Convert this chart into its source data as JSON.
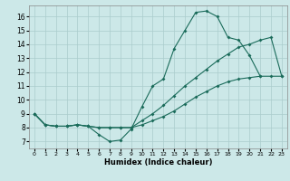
{
  "xlabel": "Humidex (Indice chaleur)",
  "background_color": "#cce8e8",
  "grid_color": "#aacccc",
  "line_color": "#1a6b5a",
  "xlim": [
    -0.5,
    23.5
  ],
  "ylim": [
    6.5,
    16.8
  ],
  "yticks": [
    7,
    8,
    9,
    10,
    11,
    12,
    13,
    14,
    15,
    16
  ],
  "xticks": [
    0,
    1,
    2,
    3,
    4,
    5,
    6,
    7,
    8,
    9,
    10,
    11,
    12,
    13,
    14,
    15,
    16,
    17,
    18,
    19,
    20,
    21,
    22,
    23
  ],
  "line1_x": [
    0,
    1,
    2,
    3,
    4,
    5,
    6,
    7,
    8,
    9,
    10,
    11,
    12,
    13,
    14,
    15,
    16,
    17,
    18,
    19,
    20,
    21
  ],
  "line1_y": [
    9.0,
    8.2,
    8.1,
    8.1,
    8.2,
    8.1,
    7.5,
    7.0,
    7.1,
    7.9,
    9.5,
    11.0,
    11.5,
    13.7,
    15.0,
    16.3,
    16.4,
    16.0,
    14.5,
    14.3,
    13.2,
    11.7
  ],
  "line2_x": [
    0,
    1,
    2,
    3,
    4,
    5,
    6,
    7,
    8,
    9,
    10,
    11,
    12,
    13,
    14,
    15,
    16,
    17,
    18,
    19,
    20,
    21,
    22,
    23
  ],
  "line2_y": [
    9.0,
    8.2,
    8.1,
    8.1,
    8.2,
    8.1,
    8.0,
    8.0,
    8.0,
    8.0,
    8.5,
    9.0,
    9.6,
    10.3,
    11.0,
    11.6,
    12.2,
    12.8,
    13.3,
    13.8,
    14.0,
    14.3,
    14.5,
    11.7
  ],
  "line3_x": [
    0,
    1,
    2,
    3,
    4,
    5,
    6,
    7,
    8,
    9,
    10,
    11,
    12,
    13,
    14,
    15,
    16,
    17,
    18,
    19,
    20,
    21,
    22,
    23
  ],
  "line3_y": [
    9.0,
    8.2,
    8.1,
    8.1,
    8.2,
    8.1,
    8.0,
    8.0,
    8.0,
    8.0,
    8.2,
    8.5,
    8.8,
    9.2,
    9.7,
    10.2,
    10.6,
    11.0,
    11.3,
    11.5,
    11.6,
    11.7,
    11.7,
    11.7
  ]
}
